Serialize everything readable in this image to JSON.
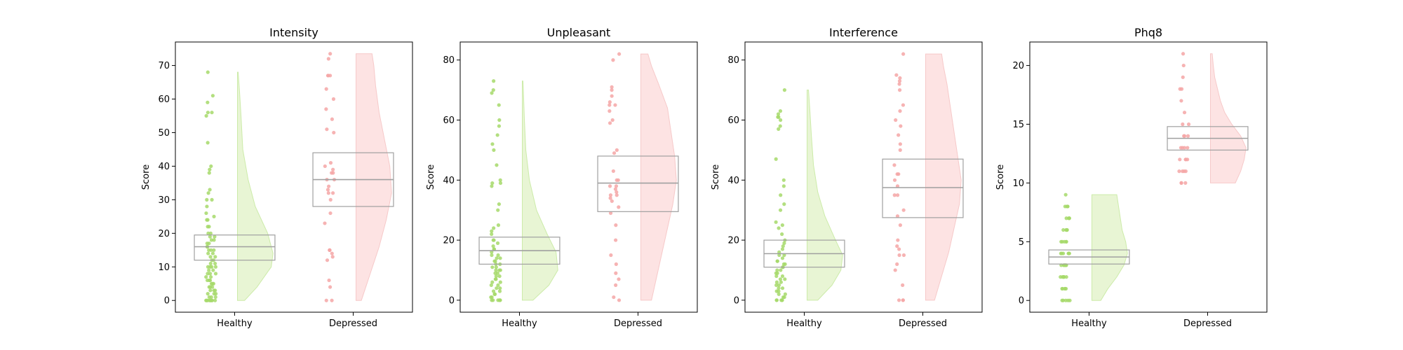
{
  "colors": {
    "healthy_point": "#a6d96a",
    "healthy_fill": "#e6f5d0",
    "healthy_edge": "#c7e9a0",
    "depressed_point": "#f4a6a6",
    "depressed_fill": "#fde0e0",
    "depressed_edge": "#f6c4c4",
    "box": "#a0a0a0"
  },
  "chart_data": [
    {
      "type": "raincloud",
      "title": "Intensity",
      "ylabel": "Score",
      "xlabel": "",
      "categories": [
        "Healthy",
        "Depressed"
      ],
      "ylim": [
        -3.5,
        77
      ],
      "yticks": [
        0,
        10,
        20,
        30,
        40,
        50,
        60,
        70
      ],
      "groups": [
        {
          "name": "Healthy",
          "box": {
            "q1": 12,
            "median": 16,
            "q3": 19.5
          },
          "kde": {
            "min": 0,
            "max": 68,
            "points": [
              [
                0,
                0.2
              ],
              [
                4,
                0.55
              ],
              [
                10,
                0.95
              ],
              [
                14,
                1.0
              ],
              [
                20,
                0.85
              ],
              [
                28,
                0.5
              ],
              [
                36,
                0.3
              ],
              [
                45,
                0.15
              ],
              [
                55,
                0.1
              ],
              [
                62,
                0.06
              ],
              [
                68,
                0.02
              ]
            ]
          },
          "points": [
            0,
            0,
            0,
            0,
            0,
            0,
            0,
            0,
            1,
            1,
            1,
            2,
            2,
            2,
            3,
            3,
            3,
            4,
            4,
            4,
            5,
            5,
            5,
            6,
            6,
            6,
            7,
            7,
            8,
            8,
            8,
            9,
            9,
            10,
            10,
            10,
            10,
            11,
            11,
            12,
            12,
            13,
            13,
            14,
            14,
            15,
            15,
            15,
            16,
            16,
            17,
            17,
            18,
            18,
            19,
            19,
            20,
            20,
            22,
            22,
            24,
            24,
            25,
            26,
            28,
            30,
            30,
            32,
            33,
            38,
            39,
            40,
            47,
            55,
            56,
            56,
            59,
            61,
            68
          ]
        },
        {
          "name": "Depressed",
          "box": {
            "q1": 28,
            "median": 36,
            "q3": 44
          },
          "kde": {
            "min": 0,
            "max": 73.5,
            "points": [
              [
                0,
                0.15
              ],
              [
                8,
                0.4
              ],
              [
                16,
                0.65
              ],
              [
                24,
                0.85
              ],
              [
                32,
                1.0
              ],
              [
                40,
                0.95
              ],
              [
                48,
                0.8
              ],
              [
                56,
                0.65
              ],
              [
                64,
                0.55
              ],
              [
                70,
                0.5
              ],
              [
                73.5,
                0.45
              ]
            ]
          },
          "points": [
            0,
            0,
            4,
            6,
            12,
            13,
            14,
            15,
            15,
            15,
            23,
            26,
            30,
            32,
            32,
            33,
            34,
            36,
            36,
            38,
            38,
            39,
            40,
            41,
            50,
            51,
            54,
            57,
            60,
            63,
            67,
            67,
            67,
            72,
            73.5
          ]
        }
      ]
    },
    {
      "type": "raincloud",
      "title": "Unpleasant",
      "ylabel": "Score",
      "xlabel": "",
      "categories": [
        "Healthy",
        "Depressed"
      ],
      "ylim": [
        -4,
        86
      ],
      "yticks": [
        0,
        20,
        40,
        60,
        80
      ],
      "groups": [
        {
          "name": "Healthy",
          "box": {
            "q1": 12,
            "median": 16.5,
            "q3": 21
          },
          "kde": {
            "min": 0,
            "max": 73,
            "points": [
              [
                0,
                0.3
              ],
              [
                5,
                0.75
              ],
              [
                10,
                1.0
              ],
              [
                16,
                0.95
              ],
              [
                22,
                0.7
              ],
              [
                30,
                0.4
              ],
              [
                40,
                0.2
              ],
              [
                50,
                0.1
              ],
              [
                60,
                0.06
              ],
              [
                70,
                0.03
              ],
              [
                73,
                0.02
              ]
            ]
          },
          "points": [
            0,
            0,
            0,
            0,
            0,
            0,
            1,
            1,
            2,
            2,
            3,
            3,
            4,
            4,
            5,
            5,
            6,
            6,
            7,
            7,
            8,
            8,
            9,
            9,
            10,
            10,
            10,
            11,
            11,
            12,
            12,
            13,
            13,
            14,
            14,
            15,
            15,
            16,
            17,
            17,
            18,
            19,
            20,
            20,
            22,
            23,
            24,
            25,
            30,
            32,
            38,
            39,
            39,
            40,
            45,
            50,
            52,
            55,
            58,
            60,
            65,
            69,
            70,
            73
          ]
        },
        {
          "name": "Depressed",
          "box": {
            "q1": 29.5,
            "median": 39,
            "q3": 48
          },
          "kde": {
            "min": 0,
            "max": 82,
            "points": [
              [
                0,
                0.3
              ],
              [
                8,
                0.45
              ],
              [
                16,
                0.6
              ],
              [
                24,
                0.75
              ],
              [
                32,
                0.9
              ],
              [
                40,
                1.0
              ],
              [
                48,
                0.95
              ],
              [
                56,
                0.85
              ],
              [
                64,
                0.75
              ],
              [
                72,
                0.5
              ],
              [
                78,
                0.3
              ],
              [
                82,
                0.2
              ]
            ]
          },
          "points": [
            0,
            1,
            5,
            7,
            9,
            12,
            15,
            20,
            25,
            29,
            31,
            33,
            34,
            35,
            35,
            36,
            37,
            38,
            38,
            40,
            40,
            43,
            49,
            50,
            59,
            60,
            63,
            65,
            65,
            66,
            68,
            70,
            71,
            80,
            82
          ]
        }
      ]
    },
    {
      "type": "raincloud",
      "title": "Interference",
      "ylabel": "Score",
      "xlabel": "",
      "categories": [
        "Healthy",
        "Depressed"
      ],
      "ylim": [
        -4,
        86
      ],
      "yticks": [
        0,
        20,
        40,
        60,
        80
      ],
      "groups": [
        {
          "name": "Healthy",
          "box": {
            "q1": 11,
            "median": 15.5,
            "q3": 20
          },
          "kde": {
            "min": 0,
            "max": 70,
            "points": [
              [
                0,
                0.3
              ],
              [
                5,
                0.7
              ],
              [
                10,
                0.95
              ],
              [
                15,
                1.0
              ],
              [
                20,
                0.8
              ],
              [
                28,
                0.5
              ],
              [
                36,
                0.3
              ],
              [
                45,
                0.18
              ],
              [
                55,
                0.12
              ],
              [
                63,
                0.08
              ],
              [
                70,
                0.04
              ]
            ]
          },
          "points": [
            0,
            0,
            0,
            0,
            0,
            1,
            1,
            2,
            2,
            3,
            3,
            4,
            4,
            5,
            5,
            6,
            6,
            7,
            7,
            8,
            8,
            9,
            9,
            10,
            10,
            11,
            11,
            12,
            12,
            13,
            13,
            14,
            15,
            15,
            16,
            17,
            18,
            19,
            20,
            22,
            24,
            25,
            26,
            30,
            32,
            35,
            38,
            40,
            47,
            57,
            58,
            60,
            61,
            61,
            62,
            63,
            70
          ]
        },
        {
          "name": "Depressed",
          "box": {
            "q1": 27.5,
            "median": 37.5,
            "q3": 47
          },
          "kde": {
            "min": 0,
            "max": 82,
            "points": [
              [
                0,
                0.25
              ],
              [
                8,
                0.45
              ],
              [
                16,
                0.65
              ],
              [
                24,
                0.8
              ],
              [
                32,
                0.95
              ],
              [
                40,
                1.0
              ],
              [
                48,
                0.9
              ],
              [
                56,
                0.8
              ],
              [
                64,
                0.7
              ],
              [
                72,
                0.6
              ],
              [
                78,
                0.5
              ],
              [
                82,
                0.45
              ]
            ]
          },
          "points": [
            0,
            0,
            0,
            5,
            10,
            12,
            15,
            15,
            17,
            18,
            20,
            25,
            28,
            30,
            35,
            35,
            38,
            40,
            42,
            42,
            45,
            50,
            52,
            55,
            58,
            60,
            63,
            65,
            70,
            72,
            73,
            74,
            75,
            82
          ]
        }
      ]
    },
    {
      "type": "raincloud",
      "title": "Phq8",
      "ylabel": "Score",
      "xlabel": "",
      "categories": [
        "Healthy",
        "Depressed"
      ],
      "ylim": [
        -1,
        22
      ],
      "yticks": [
        0,
        5,
        10,
        15,
        20
      ],
      "groups": [
        {
          "name": "Healthy",
          "box": {
            "q1": 3.1,
            "median": 3.7,
            "q3": 4.3
          },
          "kde": {
            "min": 0,
            "max": 9,
            "points": [
              [
                0,
                0.25
              ],
              [
                1,
                0.45
              ],
              [
                2,
                0.7
              ],
              [
                3,
                0.9
              ],
              [
                4,
                1.0
              ],
              [
                5,
                0.95
              ],
              [
                6,
                0.85
              ],
              [
                7,
                0.8
              ],
              [
                8,
                0.75
              ],
              [
                9,
                0.7
              ]
            ]
          },
          "points": [
            0,
            0,
            0,
            0,
            0,
            1,
            1,
            1,
            1,
            1,
            2,
            2,
            2,
            2,
            2,
            2,
            3,
            3,
            3,
            3,
            3,
            3,
            3,
            4,
            4,
            4,
            4,
            4,
            4,
            5,
            5,
            5,
            5,
            5,
            6,
            6,
            6,
            6,
            6,
            7,
            7,
            7,
            7,
            8,
            8,
            8,
            8,
            9
          ]
        },
        {
          "name": "Depressed",
          "box": {
            "q1": 12.8,
            "median": 13.8,
            "q3": 14.8
          },
          "kde": {
            "min": 10,
            "max": 21,
            "points": [
              [
                10,
                0.7
              ],
              [
                11,
                0.85
              ],
              [
                12,
                0.95
              ],
              [
                13,
                1.0
              ],
              [
                14,
                0.85
              ],
              [
                15,
                0.6
              ],
              [
                16,
                0.4
              ],
              [
                17,
                0.28
              ],
              [
                18,
                0.2
              ],
              [
                19,
                0.12
              ],
              [
                20,
                0.08
              ],
              [
                21,
                0.05
              ]
            ]
          },
          "points": [
            10,
            10,
            10,
            11,
            11,
            11,
            11,
            12,
            12,
            12,
            12,
            13,
            13,
            13,
            13,
            14,
            14,
            14,
            15,
            15,
            16,
            17,
            18,
            18,
            19,
            20,
            21
          ]
        }
      ]
    }
  ]
}
